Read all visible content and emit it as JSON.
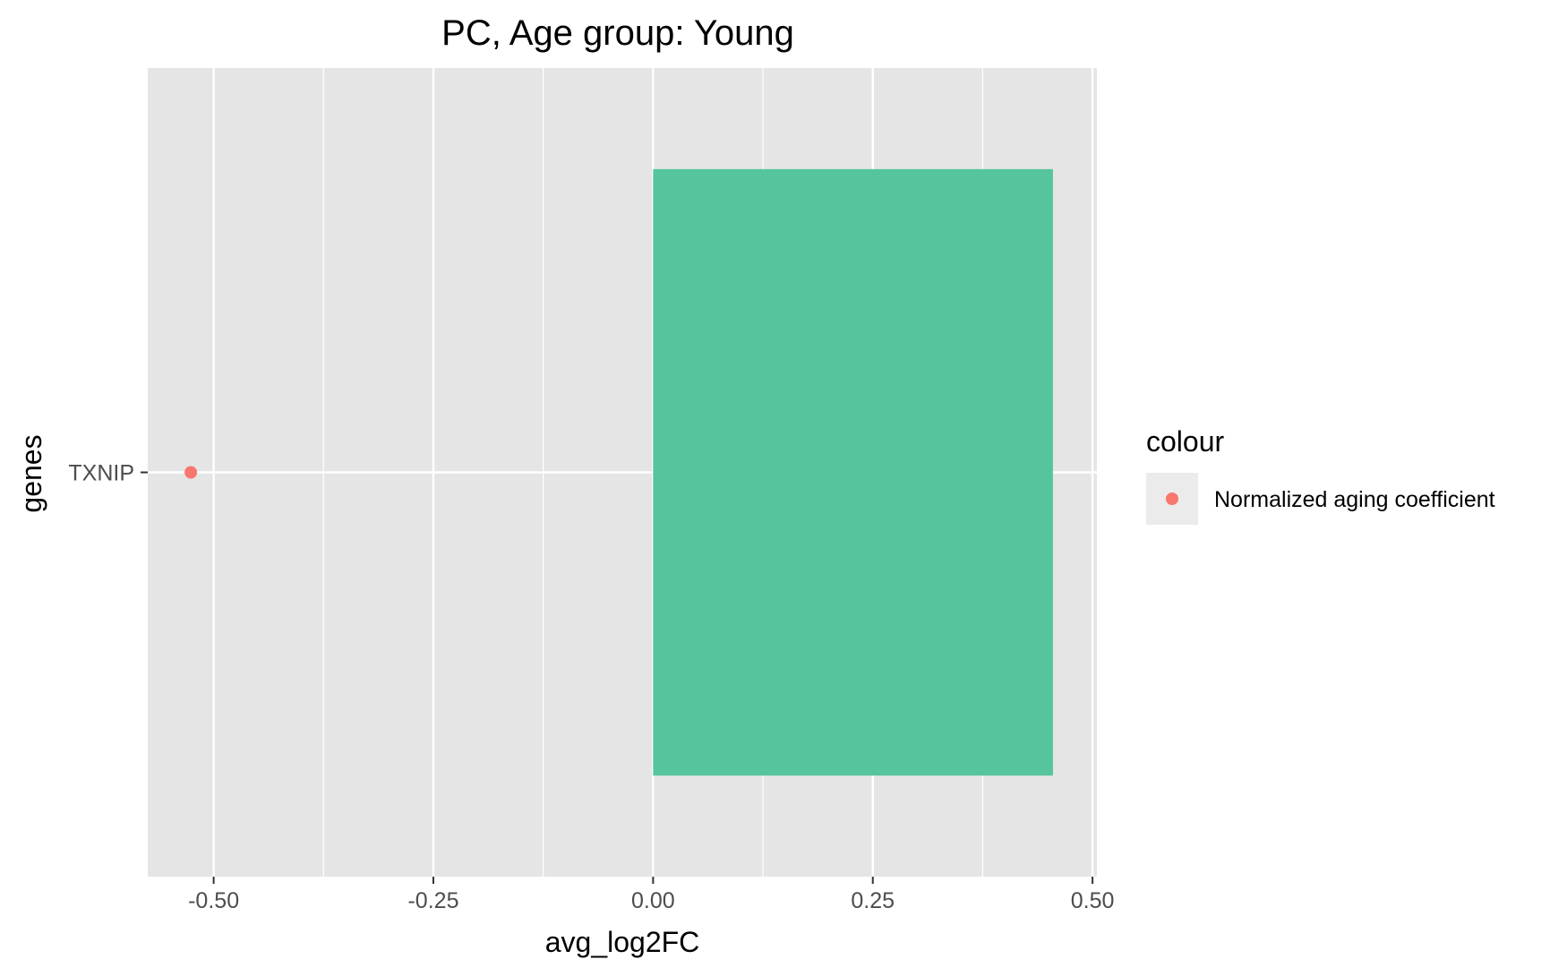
{
  "chart_data": {
    "type": "bar",
    "title": "PC, Age group: Young",
    "xlabel": "avg_log2FC",
    "ylabel": "genes",
    "orientation": "horizontal",
    "categories": [
      "TXNIP"
    ],
    "xlim": [
      -0.575,
      0.505
    ],
    "x_ticks": [
      -0.5,
      -0.25,
      0,
      0.25,
      0.5
    ],
    "x_tick_labels": [
      "-0.50",
      "-0.25",
      "0.00",
      "0.25",
      "0.50"
    ],
    "series": [
      {
        "kind": "bar",
        "values": [
          0.455
        ],
        "color": "#56c59b"
      },
      {
        "kind": "point",
        "name": "Normalized aging coefficient",
        "values": [
          -0.526
        ],
        "color": "#f8766d"
      }
    ],
    "legend": {
      "title": "colour",
      "position": "right",
      "entries": [
        {
          "label": "Normalized aging coefficient",
          "color": "#f8766d"
        }
      ]
    },
    "grid": true,
    "panel_background": "#e5e5e5"
  }
}
